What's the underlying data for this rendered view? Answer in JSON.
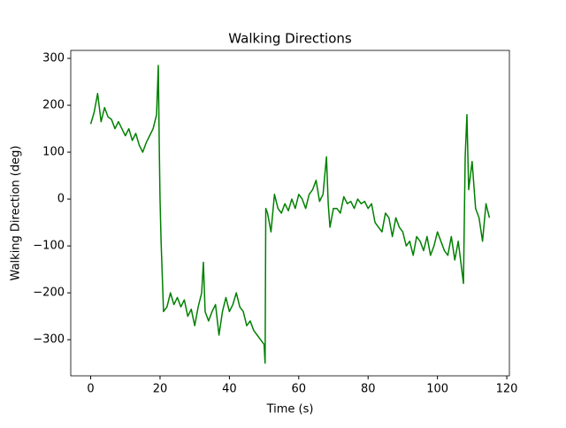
{
  "chart_data": {
    "type": "line",
    "title": "Walking Directions",
    "x_label": "Time (s)",
    "y_label": "Walking Direction (deg)",
    "xlim": [
      -5.75,
      120.75
    ],
    "ylim": [
      -377,
      317
    ],
    "xticks": [
      0,
      20,
      40,
      60,
      80,
      100,
      120
    ],
    "yticks": [
      {
        "value": -300,
        "label": "−300"
      },
      {
        "value": -200,
        "label": "−200"
      },
      {
        "value": -100,
        "label": "−100"
      },
      0,
      100,
      200,
      300
    ],
    "series": [
      {
        "color": "#008000",
        "x": [
          0,
          1,
          2,
          3,
          4,
          5,
          6,
          7,
          8,
          9,
          10,
          11,
          12,
          13,
          14,
          15,
          16,
          17,
          18,
          19,
          19.5,
          19.8,
          20,
          20.3,
          21,
          22,
          23,
          24,
          25,
          26,
          27,
          28,
          29,
          30,
          31,
          32,
          32.5,
          33,
          34,
          35,
          36,
          37,
          38,
          39,
          40,
          41,
          42,
          43,
          44,
          45,
          46,
          47,
          48,
          49,
          50,
          50.3,
          50.5,
          51,
          52,
          53,
          54,
          55,
          56,
          57,
          58,
          59,
          60,
          61,
          62,
          63,
          64,
          65,
          66,
          67,
          68,
          68.5,
          69,
          70,
          71,
          72,
          73,
          74,
          75,
          76,
          77,
          78,
          79,
          80,
          81,
          82,
          83,
          84,
          85,
          86,
          87,
          88,
          89,
          90,
          91,
          92,
          93,
          94,
          95,
          96,
          97,
          98,
          99,
          100,
          101,
          102,
          103,
          104,
          105,
          106,
          107,
          107.5,
          108,
          108.5,
          109,
          110,
          111,
          112,
          113,
          114,
          115
        ],
        "values": [
          160,
          185,
          225,
          165,
          195,
          175,
          170,
          150,
          165,
          150,
          135,
          150,
          125,
          140,
          115,
          100,
          120,
          135,
          150,
          180,
          285,
          100,
          0,
          -90,
          -240,
          -230,
          -200,
          -225,
          -210,
          -230,
          -215,
          -250,
          -235,
          -270,
          -230,
          -200,
          -135,
          -240,
          -260,
          -240,
          -225,
          -290,
          -240,
          -210,
          -240,
          -225,
          -200,
          -230,
          -240,
          -270,
          -260,
          -280,
          -290,
          -300,
          -310,
          -350,
          -20,
          -30,
          -70,
          10,
          -20,
          -30,
          -10,
          -25,
          0,
          -20,
          10,
          0,
          -20,
          10,
          20,
          40,
          -5,
          10,
          90,
          -10,
          -60,
          -20,
          -20,
          -30,
          5,
          -10,
          -5,
          -20,
          0,
          -10,
          -5,
          -20,
          -10,
          -50,
          -60,
          -70,
          -30,
          -40,
          -80,
          -40,
          -60,
          -70,
          -100,
          -90,
          -120,
          -80,
          -90,
          -110,
          -80,
          -120,
          -100,
          -70,
          -90,
          -110,
          -120,
          -80,
          -130,
          -90,
          -150,
          -180,
          90,
          180,
          20,
          80,
          -20,
          -40,
          -90,
          -10,
          -40
        ]
      }
    ]
  }
}
